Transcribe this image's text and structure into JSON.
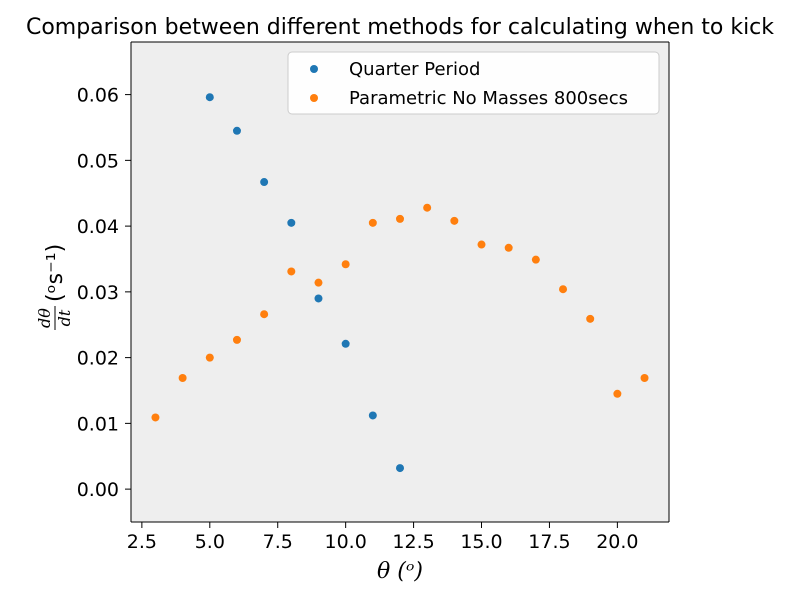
{
  "chart_data": {
    "type": "scatter",
    "title": "Comparison between different methods for calculating when to kick",
    "xlabel": "θ (ᵒ)",
    "ylabel_num": "dθ",
    "ylabel_den": "dt",
    "ylabel_units": "(ᵒs⁻¹)",
    "xlim": [
      2.1,
      21.9
    ],
    "ylim": [
      -0.005,
      0.068
    ],
    "xticks": [
      2.5,
      5.0,
      7.5,
      10.0,
      12.5,
      15.0,
      17.5,
      20.0
    ],
    "xtick_labels": [
      "2.5",
      "5.0",
      "7.5",
      "10.0",
      "12.5",
      "15.0",
      "17.5",
      "20.0"
    ],
    "yticks": [
      0.0,
      0.01,
      0.02,
      0.03,
      0.04,
      0.05,
      0.06
    ],
    "ytick_labels": [
      "0.00",
      "0.01",
      "0.02",
      "0.03",
      "0.04",
      "0.05",
      "0.06"
    ],
    "grid": false,
    "legend_position": "top-right",
    "series": [
      {
        "name": "Quarter Period",
        "color": "#1f77b4",
        "x": [
          5,
          6,
          7,
          8,
          9,
          10,
          11,
          12
        ],
        "y": [
          0.0596,
          0.0545,
          0.0467,
          0.0405,
          0.029,
          0.0221,
          0.0112,
          0.0032
        ]
      },
      {
        "name": "Parametric No Masses 800secs",
        "color": "#ff7f0e",
        "x": [
          3,
          4,
          5,
          6,
          7,
          8,
          9,
          10,
          11,
          12,
          13,
          14,
          15,
          16,
          17,
          18,
          19,
          20,
          21
        ],
        "y": [
          0.0109,
          0.0169,
          0.02,
          0.0227,
          0.0266,
          0.0331,
          0.0314,
          0.0342,
          0.0405,
          0.0411,
          0.0428,
          0.0408,
          0.0372,
          0.0367,
          0.0349,
          0.0304,
          0.0259,
          0.0145,
          0.0169
        ]
      }
    ]
  }
}
